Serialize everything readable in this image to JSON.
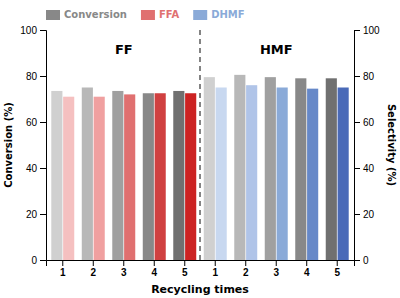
{
  "chart_data": {
    "type": "bar",
    "categories": [
      "1",
      "2",
      "3",
      "4",
      "5",
      "1",
      "2",
      "3",
      "4",
      "5"
    ],
    "series": [
      {
        "name": "Conversion",
        "color": "#888888",
        "axis": "y",
        "colors": [
          "#d0d0d0",
          "#b8b8b8",
          "#a0a0a0",
          "#888888",
          "#707070",
          "#d0d0d0",
          "#b8b8b8",
          "#a0a0a0",
          "#888888",
          "#707070"
        ],
        "values": [
          73.5,
          75.0,
          73.5,
          72.5,
          73.5,
          79.5,
          80.5,
          79.5,
          79.0,
          79.0
        ]
      },
      {
        "name": "FFA",
        "color": "#e07070",
        "axis": "y2",
        "colors": [
          "#f5c0c0",
          "#f0a0a0",
          "#e07070",
          "#d04040",
          "#cc2222",
          null,
          null,
          null,
          null,
          null
        ],
        "values": [
          71.0,
          71.0,
          72.0,
          72.5,
          72.5,
          null,
          null,
          null,
          null,
          null
        ]
      },
      {
        "name": "DHMF",
        "color": "#8aaad8",
        "axis": "y2",
        "colors": [
          null,
          null,
          null,
          null,
          null,
          "#c8d8f0",
          "#b0c4e8",
          "#8aaad8",
          "#6688c8",
          "#4a6ab8"
        ],
        "values": [
          null,
          null,
          null,
          null,
          null,
          75.0,
          76.0,
          75.0,
          74.5,
          75.0
        ]
      }
    ],
    "xlabel": "Recycling times",
    "ylabel": "Conversion (%)",
    "y2label": "Selectivity (%)",
    "ylim": [
      0,
      100
    ],
    "yticks": [
      0,
      20,
      40,
      60,
      80,
      100
    ],
    "y2lim": [
      0,
      100
    ],
    "y2ticks": [
      0,
      20,
      40,
      60,
      80,
      100
    ],
    "annotations": [
      {
        "text": "FF",
        "y": 91
      },
      {
        "text": "HMF",
        "y": 91
      }
    ],
    "legend": "top",
    "grid": false
  }
}
